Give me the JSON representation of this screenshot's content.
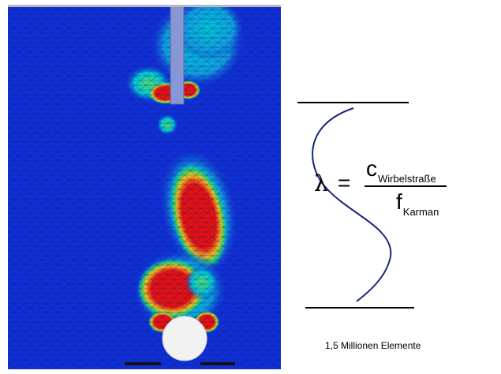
{
  "simulation": {
    "colors": {
      "background": "#1030d8",
      "high": "#e81010",
      "mid": "#00c8d8",
      "low": "#30d860",
      "cylinder": "#f2f2f2",
      "rod": "#8896d6"
    }
  },
  "formula": {
    "lhs": "λ",
    "equals": "=",
    "numerator_symbol": "c",
    "numerator_subscript": "Wirbelstraße",
    "denominator_symbol": "f",
    "denominator_subscript": "Karman"
  },
  "caption": "1,5 Millionen Elemente"
}
